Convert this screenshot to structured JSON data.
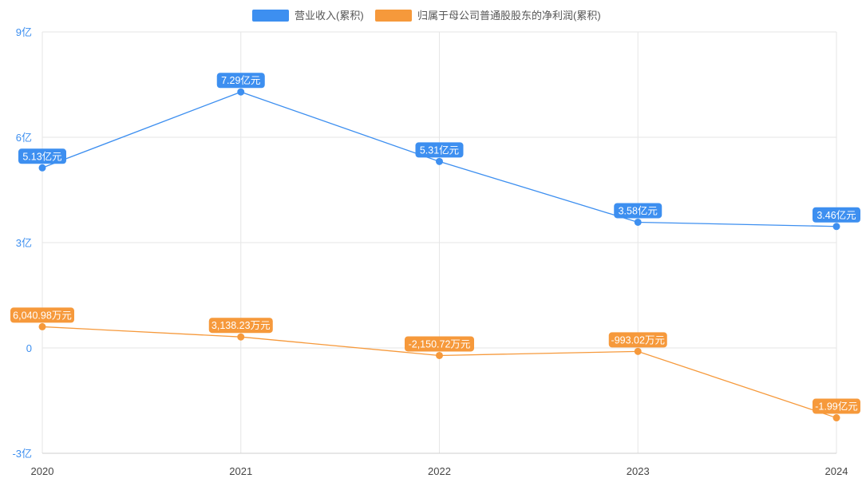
{
  "chart_data": {
    "type": "line",
    "categories": [
      "2020",
      "2021",
      "2022",
      "2023",
      "2024"
    ],
    "series": [
      {
        "name": "营业收入(累积)",
        "color": "#3d8ff0",
        "values": [
          5.13,
          7.29,
          5.31,
          3.58,
          3.46
        ],
        "labels": [
          "5.13亿元",
          "7.29亿元",
          "5.31亿元",
          "3.58亿元",
          "3.46亿元"
        ]
      },
      {
        "name": "归属于母公司普通股股东的净利润(累积)",
        "color": "#f6993b",
        "values": [
          0.604098,
          0.313823,
          -0.215072,
          -0.099302,
          -1.99
        ],
        "labels": [
          "6,040.98万元",
          "3,138.23万元",
          "-2,150.72万元",
          "-993.02万元",
          "-1.99亿元"
        ]
      }
    ],
    "yticks": [
      {
        "value": 9,
        "label": "9亿"
      },
      {
        "value": 6,
        "label": "6亿"
      },
      {
        "value": 3,
        "label": "3亿"
      },
      {
        "value": 0,
        "label": "0"
      },
      {
        "value": -3,
        "label": "-3亿"
      }
    ],
    "ylim": [
      -3,
      9
    ],
    "legend_position": "top-center",
    "grid": true
  }
}
